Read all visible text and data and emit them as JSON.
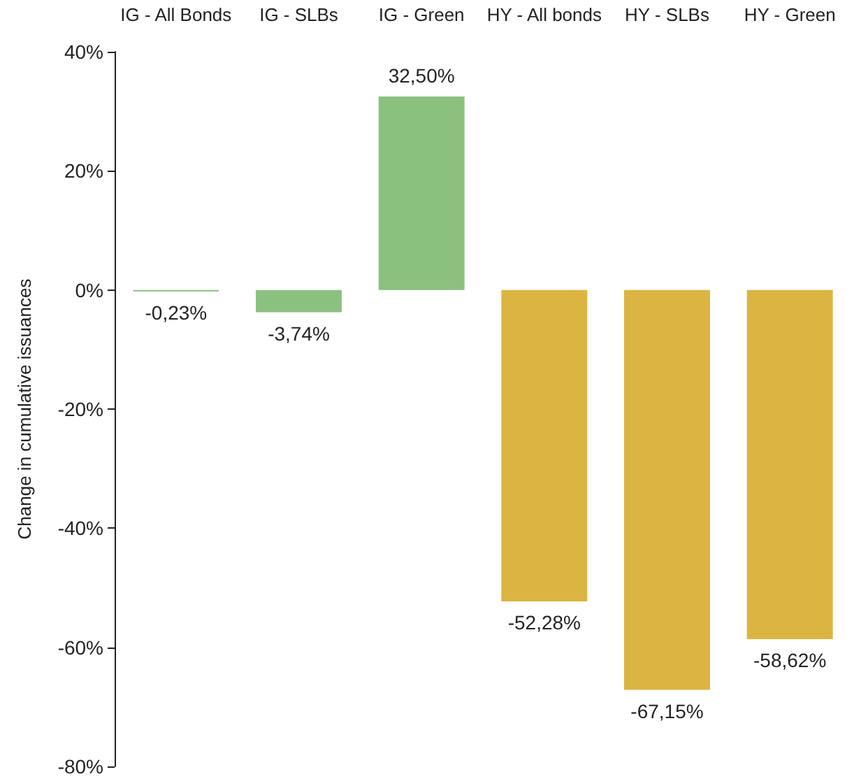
{
  "chart_data": {
    "type": "bar",
    "ylabel": "Change in cumulative issuances",
    "categories": [
      "IG - All Bonds",
      "IG - SLBs",
      "IG - Green",
      "HY - All bonds",
      "HY - SLBs",
      "HY - Green"
    ],
    "values": [
      -0.23,
      -3.74,
      32.5,
      -52.28,
      -67.15,
      -58.62
    ],
    "colors": [
      "#8bc17f",
      "#8bc17f",
      "#8bc17f",
      "#dcb441",
      "#dcb441",
      "#dcb441"
    ],
    "value_labels": [
      "-0,23%",
      "-3,74%",
      "32,50%",
      "-52,28%",
      "-67,15%",
      "-58,62%"
    ],
    "ylim": [
      -80,
      40
    ],
    "yticks": [
      {
        "value": -80,
        "label": "-80%"
      },
      {
        "value": -60,
        "label": "-60%"
      },
      {
        "value": -40,
        "label": "-40%"
      },
      {
        "value": -20,
        "label": "-20%"
      },
      {
        "value": 0,
        "label": "0%"
      },
      {
        "value": 20,
        "label": "20%"
      },
      {
        "value": 40,
        "label": "40%"
      }
    ],
    "grid": false
  }
}
